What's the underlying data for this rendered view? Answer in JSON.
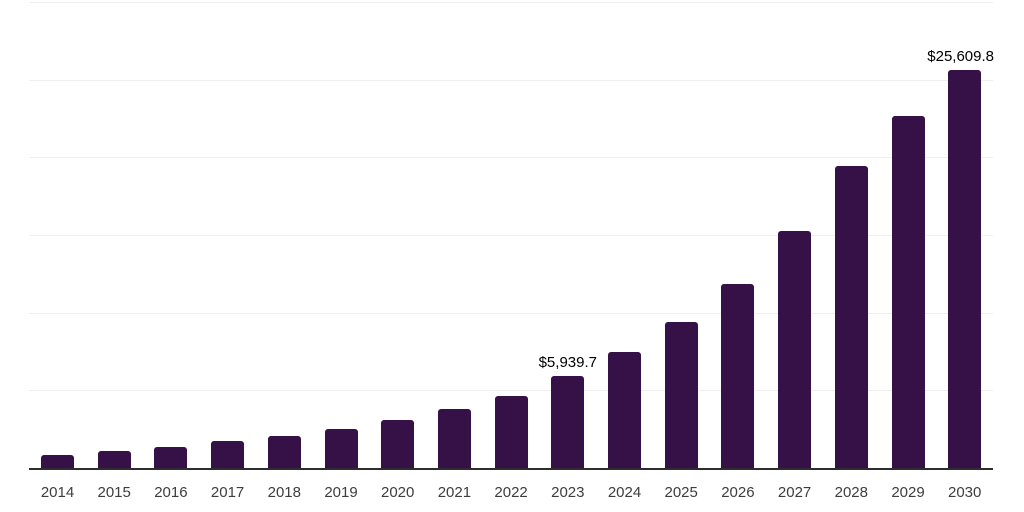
{
  "chart_data": {
    "type": "bar",
    "title": "",
    "categories": [
      "2014",
      "2015",
      "2016",
      "2017",
      "2018",
      "2019",
      "2020",
      "2021",
      "2022",
      "2023",
      "2024",
      "2025",
      "2026",
      "2027",
      "2028",
      "2029",
      "2030"
    ],
    "values": [
      810,
      1065,
      1345,
      1755,
      2030,
      2480,
      3060,
      3795,
      4610,
      5939.7,
      7440,
      9430,
      11875,
      15240,
      19420,
      22680,
      25609.8
    ],
    "xlabel": "",
    "ylabel": "",
    "ylim": [
      0,
      30000
    ],
    "grid_step": 5000,
    "grid": true,
    "legend": false,
    "y_tick_labels_visible": false,
    "data_labels": [
      {
        "category": "2023",
        "text": "$5,939.7"
      },
      {
        "category": "2030",
        "text": "$25,609.8"
      }
    ],
    "colors": {
      "bar": "#351148",
      "gridline": "#efefef",
      "axis_line": "#2e2e2e",
      "x_tick_label": "#3d3d3d",
      "data_label": "#000000",
      "background": "#ffffff"
    }
  }
}
